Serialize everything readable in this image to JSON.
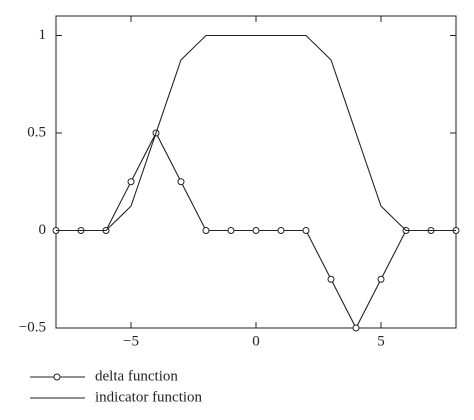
{
  "chart_data": {
    "type": "line",
    "x": [
      -8,
      -7,
      -6,
      -5,
      -4,
      -3,
      -2,
      -1,
      0,
      1,
      2,
      3,
      4,
      5,
      6,
      7,
      8
    ],
    "series": [
      {
        "name": "delta function",
        "color": "#222222",
        "marker": "circle",
        "values": [
          0,
          0,
          0,
          0.25,
          0.5,
          0.25,
          0,
          0,
          0,
          0,
          0,
          -0.25,
          -0.5,
          -0.25,
          0,
          0,
          0
        ]
      },
      {
        "name": "indicator function",
        "color": "#222222",
        "values": [
          0,
          0,
          0,
          0.125,
          0.5,
          0.875,
          1,
          1,
          1,
          1,
          1,
          0.875,
          0.5,
          0.125,
          0,
          0,
          0
        ]
      }
    ],
    "xlim": [
      -8,
      8
    ],
    "ylim": [
      -0.5,
      1.1
    ],
    "xticks": [
      {
        "value": -5,
        "label": "−5"
      },
      0,
      5
    ],
    "yticks": [
      {
        "value": -0.5,
        "label": "−0.5"
      },
      0,
      0.5,
      1
    ]
  }
}
